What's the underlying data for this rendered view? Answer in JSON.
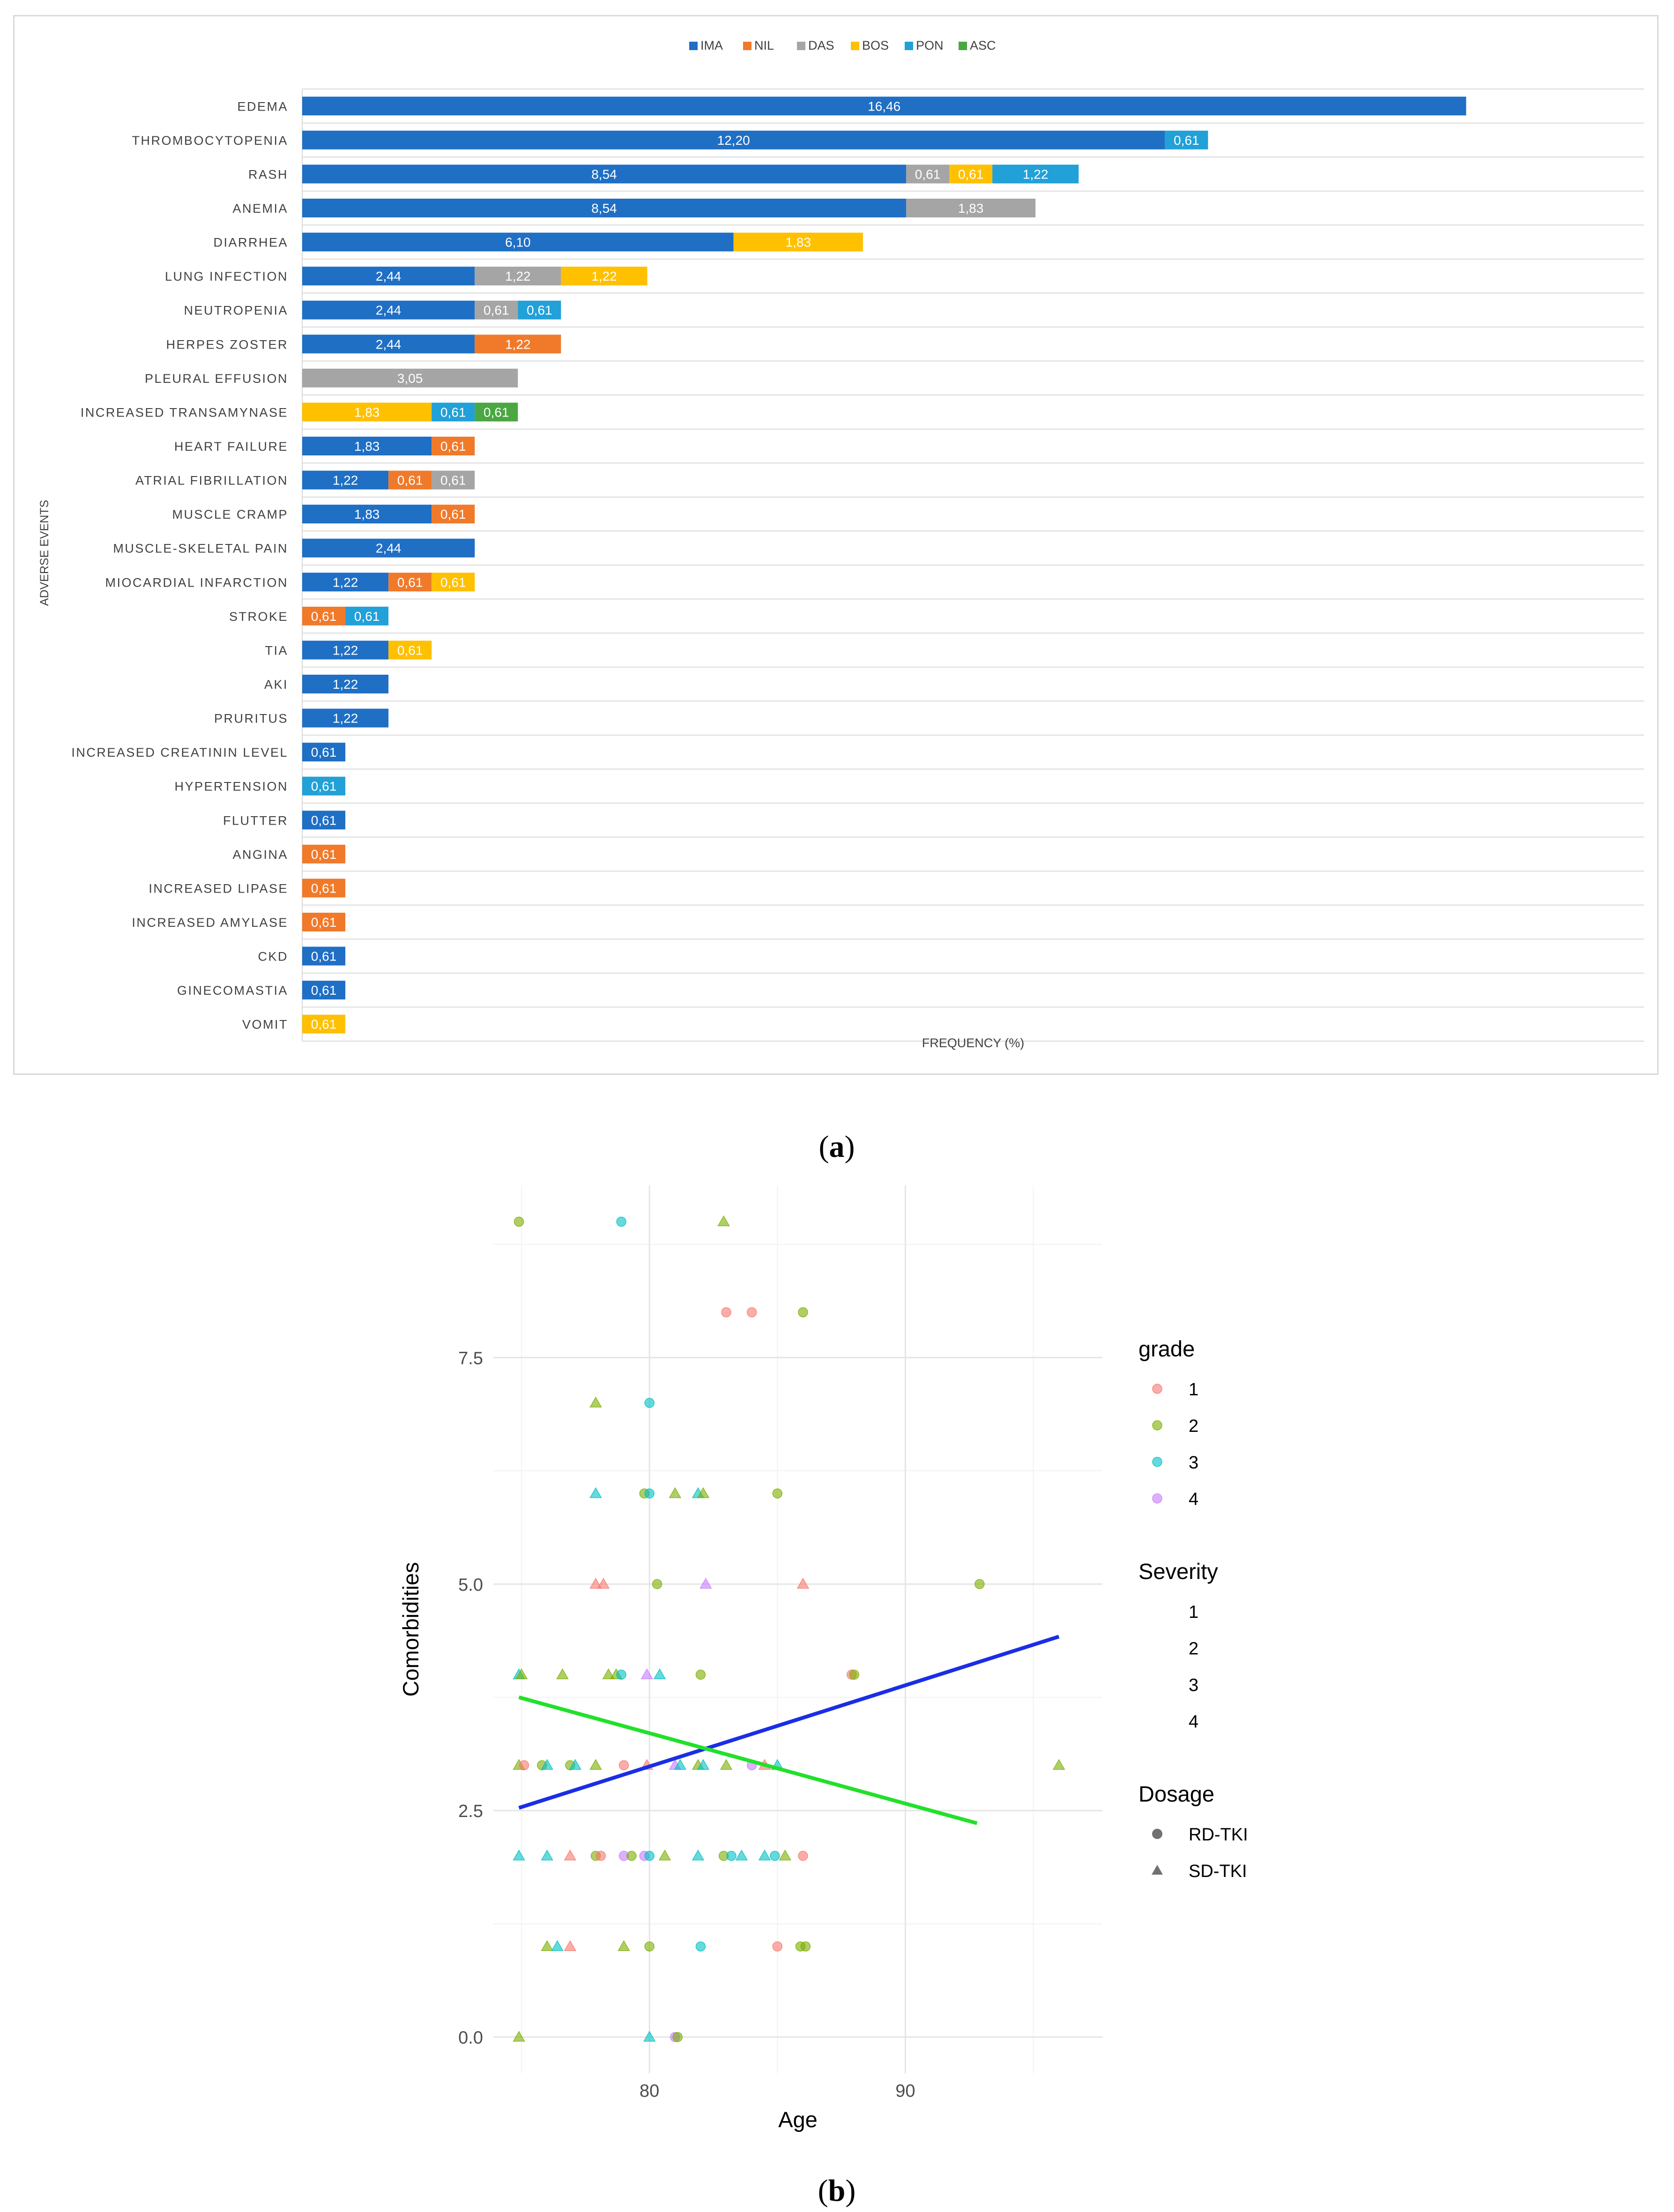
{
  "panel_a_caption": "a",
  "panel_b_caption": "b",
  "chart_data": [
    {
      "type": "bar",
      "orientation": "horizontal",
      "stacked": true,
      "title": "",
      "xlabel": "FREQUENCY (%)",
      "ylabel": "ADVERSE EVENTS",
      "xlim": [
        0,
        18
      ],
      "legend_position": "top-center",
      "series_colors": {
        "IMA": "#1f6fc5",
        "NIL": "#f07a2a",
        "DAS": "#a5a5a5",
        "BOS": "#ffc000",
        "PON": "#22a0d8",
        "ASC": "#4aa741"
      },
      "series_names": [
        "IMA",
        "NIL",
        "DAS",
        "BOS",
        "PON",
        "ASC"
      ],
      "categories": [
        "EDEMA",
        "THROMBOCYTOPENIA",
        "RASH",
        "ANEMIA",
        "DIARRHEA",
        "LUNG INFECTION",
        "NEUTROPENIA",
        "HERPES ZOSTER",
        "PLEURAL EFFUSION",
        "INCREASED TRANSAMYNASE",
        "HEART FAILURE",
        "ATRIAL FIBRILLATION",
        "MUSCLE CRAMP",
        "MUSCLE-SKELETAL PAIN",
        "MIOCARDIAL INFARCTION",
        "STROKE",
        "TIA",
        "AKI",
        "PRURITUS",
        "INCREASED CREATININ LEVEL",
        "HYPERTENSION",
        "FLUTTER",
        "ANGINA",
        "INCREASED LIPASE",
        "INCREASED AMYLASE",
        "CKD",
        "GINECOMASTIA",
        "VOMIT"
      ],
      "rows": [
        [
          {
            "s": "IMA",
            "v": 16.46,
            "label": "16,46"
          }
        ],
        [
          {
            "s": "IMA",
            "v": 12.2,
            "label": "12,20"
          },
          {
            "s": "PON",
            "v": 0.61,
            "label": "0,61"
          }
        ],
        [
          {
            "s": "IMA",
            "v": 8.54,
            "label": "8,54"
          },
          {
            "s": "DAS",
            "v": 0.61,
            "label": "0,61"
          },
          {
            "s": "BOS",
            "v": 0.61,
            "label": "0,61"
          },
          {
            "s": "PON",
            "v": 1.22,
            "label": "1,22"
          }
        ],
        [
          {
            "s": "IMA",
            "v": 8.54,
            "label": "8,54"
          },
          {
            "s": "DAS",
            "v": 1.83,
            "label": "1,83"
          }
        ],
        [
          {
            "s": "IMA",
            "v": 6.1,
            "label": "6,10"
          },
          {
            "s": "BOS",
            "v": 1.83,
            "label": "1,83"
          }
        ],
        [
          {
            "s": "IMA",
            "v": 2.44,
            "label": "2,44"
          },
          {
            "s": "DAS",
            "v": 1.22,
            "label": "1,22"
          },
          {
            "s": "BOS",
            "v": 1.22,
            "label": "1,22"
          }
        ],
        [
          {
            "s": "IMA",
            "v": 2.44,
            "label": "2,44"
          },
          {
            "s": "DAS",
            "v": 0.61,
            "label": "0,61"
          },
          {
            "s": "PON",
            "v": 0.61,
            "label": "0,61"
          }
        ],
        [
          {
            "s": "IMA",
            "v": 2.44,
            "label": "2,44"
          },
          {
            "s": "NIL",
            "v": 1.22,
            "label": "1,22"
          }
        ],
        [
          {
            "s": "DAS",
            "v": 3.05,
            "label": "3,05"
          }
        ],
        [
          {
            "s": "BOS",
            "v": 1.83,
            "label": "1,83"
          },
          {
            "s": "PON",
            "v": 0.61,
            "label": "0,61"
          },
          {
            "s": "ASC",
            "v": 0.61,
            "label": "0,61"
          }
        ],
        [
          {
            "s": "IMA",
            "v": 1.83,
            "label": "1,83"
          },
          {
            "s": "NIL",
            "v": 0.61,
            "label": "0,61"
          }
        ],
        [
          {
            "s": "IMA",
            "v": 1.22,
            "label": "1,22"
          },
          {
            "s": "NIL",
            "v": 0.61,
            "label": "0,61"
          },
          {
            "s": "DAS",
            "v": 0.61,
            "label": "0,61"
          }
        ],
        [
          {
            "s": "IMA",
            "v": 1.83,
            "label": "1,83"
          },
          {
            "s": "NIL",
            "v": 0.61,
            "label": "0,61"
          }
        ],
        [
          {
            "s": "IMA",
            "v": 2.44,
            "label": "2,44"
          }
        ],
        [
          {
            "s": "IMA",
            "v": 1.22,
            "label": "1,22"
          },
          {
            "s": "NIL",
            "v": 0.61,
            "label": "0,61"
          },
          {
            "s": "BOS",
            "v": 0.61,
            "label": "0,61"
          }
        ],
        [
          {
            "s": "NIL",
            "v": 0.61,
            "label": "0,61"
          },
          {
            "s": "PON",
            "v": 0.61,
            "label": "0,61"
          }
        ],
        [
          {
            "s": "IMA",
            "v": 1.22,
            "label": "1,22"
          },
          {
            "s": "BOS",
            "v": 0.61,
            "label": "0,61"
          }
        ],
        [
          {
            "s": "IMA",
            "v": 1.22,
            "label": "1,22"
          }
        ],
        [
          {
            "s": "IMA",
            "v": 1.22,
            "label": "1,22"
          }
        ],
        [
          {
            "s": "IMA",
            "v": 0.61,
            "label": "0,61"
          }
        ],
        [
          {
            "s": "PON",
            "v": 0.61,
            "label": "0,61"
          }
        ],
        [
          {
            "s": "IMA",
            "v": 0.61,
            "label": "0,61"
          }
        ],
        [
          {
            "s": "NIL",
            "v": 0.61,
            "label": "0,61"
          }
        ],
        [
          {
            "s": "NIL",
            "v": 0.61,
            "label": "0,61"
          }
        ],
        [
          {
            "s": "NIL",
            "v": 0.61,
            "label": "0,61"
          }
        ],
        [
          {
            "s": "IMA",
            "v": 0.61,
            "label": "0,61"
          }
        ],
        [
          {
            "s": "IMA",
            "v": 0.61,
            "label": "0,61"
          }
        ],
        [
          {
            "s": "BOS",
            "v": 0.61,
            "label": "0,61"
          }
        ]
      ]
    },
    {
      "type": "scatter",
      "title": "",
      "xlabel": "Age",
      "ylabel": "Comorbidities",
      "xlim": [
        73.9,
        97.7
      ],
      "ylim": [
        -0.4,
        9.4
      ],
      "x_ticks": [
        80,
        90
      ],
      "x_tick_labels": [
        "80",
        "90"
      ],
      "y_ticks": [
        0,
        2.5,
        5,
        7.5
      ],
      "y_tick_labels": [
        "0.0",
        "2.5",
        "5.0",
        "7.5"
      ],
      "grid": true,
      "legend_position": "right",
      "grade_colors": {
        "1": "#f8766d",
        "2": "#7cae00",
        "3": "#00bfc4",
        "4": "#c77cff"
      },
      "legends": [
        {
          "title": "grade",
          "items": [
            {
              "label": "1",
              "key": "1"
            },
            {
              "label": "2",
              "key": "2"
            },
            {
              "label": "3",
              "key": "3"
            },
            {
              "label": "4",
              "key": "4"
            }
          ]
        },
        {
          "title": "Severity",
          "items": [
            {
              "label": "1"
            },
            {
              "label": "2"
            },
            {
              "label": "3"
            },
            {
              "label": "4"
            }
          ]
        },
        {
          "title": "Dosage",
          "items": [
            {
              "label": "RD-TKI",
              "shape": "circle"
            },
            {
              "label": "SD-TKI",
              "shape": "triangle"
            }
          ]
        }
      ],
      "trend_lines": [
        {
          "name": "RD-TKI trend",
          "color": "#1a2ee6",
          "x": [
            74.9,
            96.0
          ],
          "y": [
            2.53,
            4.42
          ]
        },
        {
          "name": "SD-TKI trend",
          "color": "#22e02a",
          "x": [
            74.9,
            92.8
          ],
          "y": [
            3.75,
            2.36
          ]
        }
      ],
      "points": [
        {
          "x": 74.9,
          "y": 9,
          "g": 2,
          "d": "RD"
        },
        {
          "x": 78.9,
          "y": 9,
          "g": 3,
          "d": "RD"
        },
        {
          "x": 82.9,
          "y": 9,
          "g": 2,
          "d": "SD"
        },
        {
          "x": 83.0,
          "y": 8,
          "g": 1,
          "d": "RD"
        },
        {
          "x": 84.0,
          "y": 8,
          "g": 1,
          "d": "RD"
        },
        {
          "x": 86.0,
          "y": 8,
          "g": 2,
          "d": "RD"
        },
        {
          "x": 77.9,
          "y": 7,
          "g": 2,
          "d": "SD"
        },
        {
          "x": 80.0,
          "y": 7,
          "g": 3,
          "d": "RD"
        },
        {
          "x": 77.9,
          "y": 6,
          "g": 3,
          "d": "SD"
        },
        {
          "x": 79.8,
          "y": 6,
          "g": 2,
          "d": "RD"
        },
        {
          "x": 80.0,
          "y": 6,
          "g": 3,
          "d": "RD"
        },
        {
          "x": 81.0,
          "y": 6,
          "g": 2,
          "d": "SD"
        },
        {
          "x": 81.9,
          "y": 6,
          "g": 3,
          "d": "SD"
        },
        {
          "x": 82.1,
          "y": 6,
          "g": 2,
          "d": "SD"
        },
        {
          "x": 85.0,
          "y": 6,
          "g": 2,
          "d": "RD"
        },
        {
          "x": 77.9,
          "y": 5,
          "g": 1,
          "d": "SD"
        },
        {
          "x": 78.2,
          "y": 5,
          "g": 1,
          "d": "SD"
        },
        {
          "x": 80.3,
          "y": 5,
          "g": 2,
          "d": "RD"
        },
        {
          "x": 82.2,
          "y": 5,
          "g": 4,
          "d": "SD"
        },
        {
          "x": 86.0,
          "y": 5,
          "g": 1,
          "d": "SD"
        },
        {
          "x": 92.9,
          "y": 5,
          "g": 2,
          "d": "RD"
        },
        {
          "x": 74.9,
          "y": 4,
          "g": 3,
          "d": "SD"
        },
        {
          "x": 75.0,
          "y": 4,
          "g": 2,
          "d": "SD"
        },
        {
          "x": 76.6,
          "y": 4,
          "g": 2,
          "d": "SD"
        },
        {
          "x": 78.4,
          "y": 4,
          "g": 2,
          "d": "SD"
        },
        {
          "x": 78.7,
          "y": 4,
          "g": 2,
          "d": "SD"
        },
        {
          "x": 78.9,
          "y": 4,
          "g": 3,
          "d": "RD"
        },
        {
          "x": 79.9,
          "y": 4,
          "g": 4,
          "d": "SD"
        },
        {
          "x": 80.4,
          "y": 4,
          "g": 3,
          "d": "SD"
        },
        {
          "x": 82.0,
          "y": 4,
          "g": 2,
          "d": "RD"
        },
        {
          "x": 87.9,
          "y": 4,
          "g": 1,
          "d": "RD"
        },
        {
          "x": 88.0,
          "y": 4,
          "g": 2,
          "d": "RD"
        },
        {
          "x": 74.9,
          "y": 3,
          "g": 2,
          "d": "SD"
        },
        {
          "x": 75.1,
          "y": 3,
          "g": 1,
          "d": "RD"
        },
        {
          "x": 75.8,
          "y": 3,
          "g": 2,
          "d": "RD"
        },
        {
          "x": 76.0,
          "y": 3,
          "g": 3,
          "d": "SD"
        },
        {
          "x": 76.9,
          "y": 3,
          "g": 2,
          "d": "RD"
        },
        {
          "x": 77.1,
          "y": 3,
          "g": 3,
          "d": "SD"
        },
        {
          "x": 77.9,
          "y": 3,
          "g": 2,
          "d": "SD"
        },
        {
          "x": 79.0,
          "y": 3,
          "g": 1,
          "d": "RD"
        },
        {
          "x": 79.9,
          "y": 3,
          "g": 1,
          "d": "SD"
        },
        {
          "x": 81.0,
          "y": 3,
          "g": 4,
          "d": "SD"
        },
        {
          "x": 81.2,
          "y": 3,
          "g": 3,
          "d": "SD"
        },
        {
          "x": 81.9,
          "y": 3,
          "g": 2,
          "d": "SD"
        },
        {
          "x": 82.1,
          "y": 3,
          "g": 3,
          "d": "SD"
        },
        {
          "x": 83.0,
          "y": 3,
          "g": 2,
          "d": "SD"
        },
        {
          "x": 84.0,
          "y": 3,
          "g": 4,
          "d": "RD"
        },
        {
          "x": 84.5,
          "y": 3,
          "g": 1,
          "d": "SD"
        },
        {
          "x": 85.0,
          "y": 3,
          "g": 3,
          "d": "SD"
        },
        {
          "x": 96.0,
          "y": 3,
          "g": 2,
          "d": "SD"
        },
        {
          "x": 74.9,
          "y": 2,
          "g": 3,
          "d": "SD"
        },
        {
          "x": 76.0,
          "y": 2,
          "g": 3,
          "d": "SD"
        },
        {
          "x": 76.9,
          "y": 2,
          "g": 1,
          "d": "SD"
        },
        {
          "x": 77.9,
          "y": 2,
          "g": 2,
          "d": "RD"
        },
        {
          "x": 78.1,
          "y": 2,
          "g": 1,
          "d": "RD"
        },
        {
          "x": 79.0,
          "y": 2,
          "g": 4,
          "d": "RD"
        },
        {
          "x": 79.3,
          "y": 2,
          "g": 2,
          "d": "RD"
        },
        {
          "x": 79.8,
          "y": 2,
          "g": 4,
          "d": "RD"
        },
        {
          "x": 80.0,
          "y": 2,
          "g": 3,
          "d": "RD"
        },
        {
          "x": 80.6,
          "y": 2,
          "g": 2,
          "d": "SD"
        },
        {
          "x": 81.9,
          "y": 2,
          "g": 3,
          "d": "SD"
        },
        {
          "x": 82.9,
          "y": 2,
          "g": 2,
          "d": "RD"
        },
        {
          "x": 83.2,
          "y": 2,
          "g": 3,
          "d": "RD"
        },
        {
          "x": 83.6,
          "y": 2,
          "g": 3,
          "d": "SD"
        },
        {
          "x": 84.5,
          "y": 2,
          "g": 3,
          "d": "SD"
        },
        {
          "x": 84.9,
          "y": 2,
          "g": 3,
          "d": "RD"
        },
        {
          "x": 85.3,
          "y": 2,
          "g": 2,
          "d": "SD"
        },
        {
          "x": 86.0,
          "y": 2,
          "g": 1,
          "d": "RD"
        },
        {
          "x": 76.0,
          "y": 1,
          "g": 2,
          "d": "SD"
        },
        {
          "x": 76.4,
          "y": 1,
          "g": 3,
          "d": "SD"
        },
        {
          "x": 76.9,
          "y": 1,
          "g": 1,
          "d": "SD"
        },
        {
          "x": 79.0,
          "y": 1,
          "g": 2,
          "d": "SD"
        },
        {
          "x": 80.0,
          "y": 1,
          "g": 2,
          "d": "RD"
        },
        {
          "x": 82.0,
          "y": 1,
          "g": 3,
          "d": "RD"
        },
        {
          "x": 85.0,
          "y": 1,
          "g": 1,
          "d": "RD"
        },
        {
          "x": 85.9,
          "y": 1,
          "g": 2,
          "d": "RD"
        },
        {
          "x": 86.1,
          "y": 1,
          "g": 2,
          "d": "RD"
        },
        {
          "x": 74.9,
          "y": 0,
          "g": 2,
          "d": "SD"
        },
        {
          "x": 80.0,
          "y": 0,
          "g": 3,
          "d": "SD"
        },
        {
          "x": 81.0,
          "y": 0,
          "g": 4,
          "d": "RD"
        },
        {
          "x": 81.1,
          "y": 0,
          "g": 2,
          "d": "RD"
        }
      ]
    }
  ]
}
